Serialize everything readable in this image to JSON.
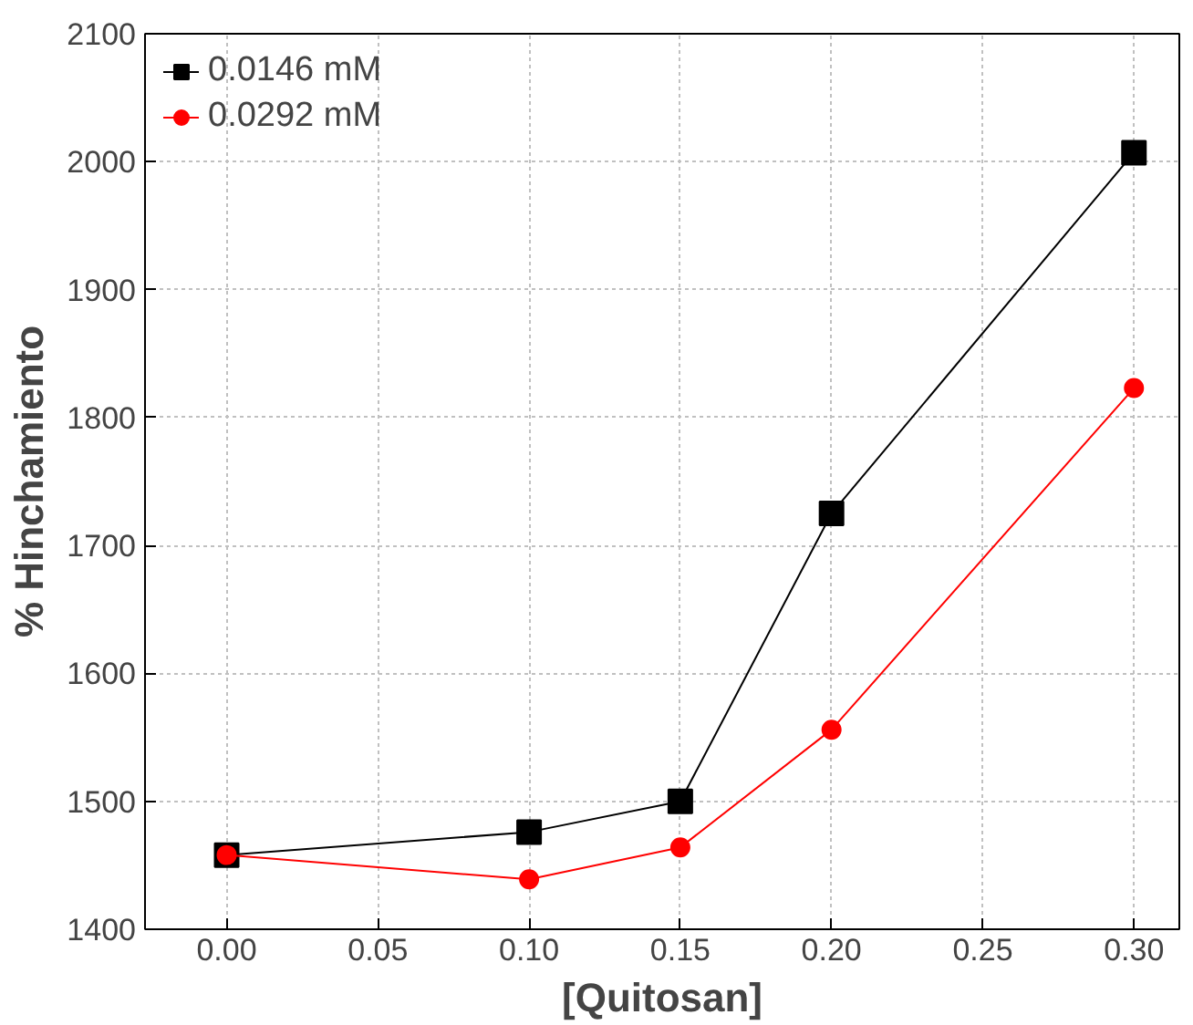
{
  "chart_data": {
    "type": "line",
    "xlabel": "[Quitosan]",
    "ylabel": "% Hinchamiento",
    "x": [
      0.0,
      0.1,
      0.15,
      0.2,
      0.3
    ],
    "series": [
      {
        "name": "0.0146 mM",
        "color": "#000000",
        "marker": "square",
        "values": [
          1458,
          1476,
          1500,
          1725,
          2007
        ]
      },
      {
        "name": "0.0292 mM",
        "color": "#ff0000",
        "marker": "circle",
        "values": [
          1458,
          1439,
          1464,
          1556,
          1823
        ]
      }
    ],
    "xlim": [
      -0.027,
      0.315
    ],
    "ylim": [
      1400,
      2100
    ],
    "xticks": [
      {
        "value": 0.0,
        "label": "0.00"
      },
      {
        "value": 0.05,
        "label": "0.05"
      },
      {
        "value": 0.1,
        "label": "0.10"
      },
      {
        "value": 0.15,
        "label": "0.15"
      },
      {
        "value": 0.2,
        "label": "0.20"
      },
      {
        "value": 0.25,
        "label": "0.25"
      },
      {
        "value": 0.3,
        "label": "0.30"
      }
    ],
    "yticks": [
      1400,
      1500,
      1600,
      1700,
      1800,
      1900,
      2000,
      2100
    ],
    "grid": true,
    "legend": "top left",
    "line_style": "solid"
  }
}
